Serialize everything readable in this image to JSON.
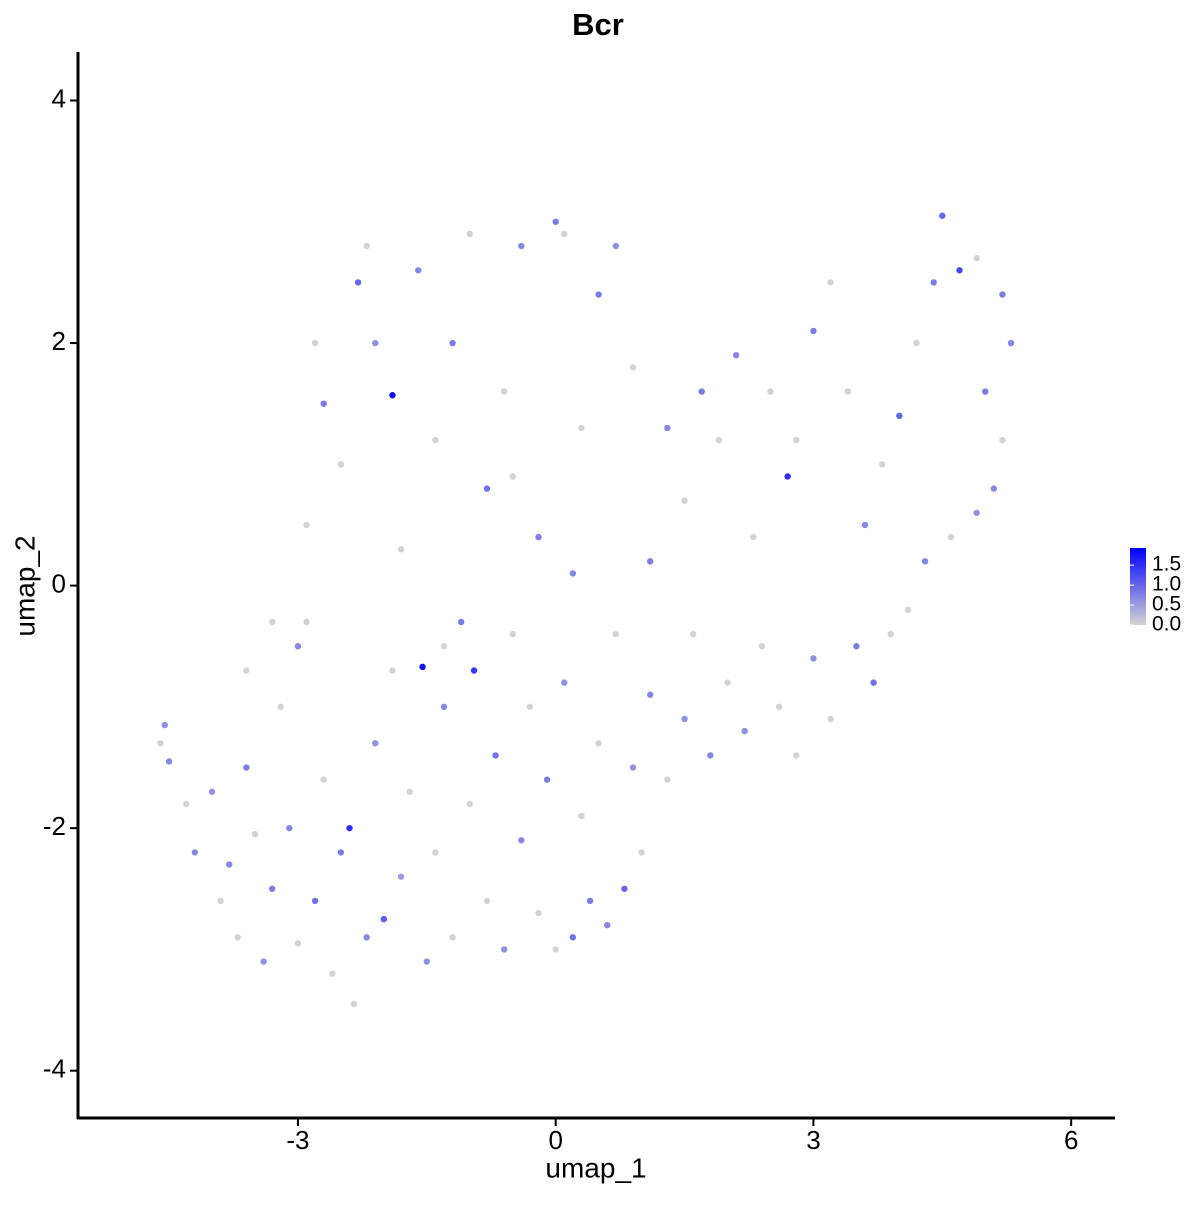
{
  "chart_data": {
    "type": "scatter",
    "title": "Bcr",
    "x_label": "umap_1",
    "y_label": "umap_2",
    "xlim": [
      -5.56,
      6.51
    ],
    "ylim": [
      -4.39,
      4.4
    ],
    "xticks": [
      -3,
      0,
      3,
      6
    ],
    "yticks": [
      -4,
      -2,
      0,
      2,
      4
    ],
    "grid": false,
    "color_low": "#d3d3d3",
    "color_high": "#0000ff",
    "clim": [
      0,
      1.93
    ],
    "cticks": [
      {
        "value": 0,
        "label": "0.0"
      },
      0.5,
      {
        "value": 1,
        "label": "1.0"
      },
      1.5
    ],
    "x": [
      -4.6,
      -4.55,
      -4.5,
      -4.3,
      -4.2,
      -4.0,
      -3.9,
      -3.8,
      -3.7,
      -3.6,
      -3.5,
      -3.4,
      -3.3,
      -3.2,
      -3.1,
      -3.0,
      -2.9,
      -2.8,
      -2.7,
      -2.6,
      -2.5,
      -2.4,
      -2.35,
      -2.2,
      -2.1,
      -2.0,
      -1.9,
      -1.8,
      -1.7,
      -1.55,
      -1.5,
      -1.4,
      -1.3,
      -1.2,
      -1.1,
      -1.0,
      -0.95,
      -0.8,
      -0.7,
      -0.6,
      -0.5,
      -0.4,
      -0.3,
      -0.2,
      -0.1,
      0,
      0.1,
      0.2,
      0.3,
      0.4,
      0.5,
      0.6,
      0.7,
      0.8,
      0.9,
      1.0,
      1.1,
      1.3,
      1.5,
      1.6,
      1.8,
      2.0,
      2.2,
      2.4,
      2.6,
      2.8,
      3.0,
      3.2,
      3.5,
      3.7,
      3.9,
      4.1,
      4.3,
      4.6,
      4.9,
      5.1,
      5.2,
      5.0,
      5.3,
      5.2,
      4.9,
      4.7,
      4.5,
      4.4,
      4.2,
      4.0,
      3.8,
      3.6,
      3.4,
      3.2,
      3.0,
      2.8,
      2.7,
      2.5,
      2.3,
      2.1,
      1.9,
      1.7,
      1.5,
      1.3,
      1.1,
      0.9,
      0.7,
      0.5,
      0.3,
      0.1,
      0,
      -0.2,
      -0.4,
      -0.6,
      -0.8,
      -1.0,
      -1.2,
      -1.4,
      -1.6,
      -1.8,
      -1.9,
      -2.1,
      -2.3,
      -2.5,
      -2.7,
      -2.9,
      -3.0,
      -3.3,
      -3.6,
      -2.8,
      -2.2,
      -0.5,
      0.2,
      -1.3
    ],
    "y": [
      -1.3,
      -1.15,
      -1.45,
      -1.8,
      -2.2,
      -1.7,
      -2.6,
      -2.3,
      -2.9,
      -1.5,
      -2.05,
      -3.1,
      -2.5,
      -1.0,
      -2.0,
      -2.95,
      -0.3,
      -2.6,
      -1.6,
      -3.2,
      -2.2,
      -2.0,
      -3.45,
      -2.9,
      -1.3,
      -2.75,
      -0.7,
      -2.4,
      -1.7,
      -0.67,
      -3.1,
      -2.2,
      -1.0,
      -2.9,
      -0.3,
      -1.8,
      -0.7,
      -2.6,
      -1.4,
      -3.0,
      -0.4,
      -2.1,
      -1.0,
      -2.7,
      -1.6,
      -3.0,
      -0.8,
      -2.9,
      -1.9,
      -2.6,
      -1.3,
      -2.8,
      -0.4,
      -2.5,
      -1.5,
      -2.2,
      -0.9,
      -1.6,
      -1.1,
      -0.4,
      -1.4,
      -0.8,
      -1.2,
      -0.5,
      -1.0,
      -1.4,
      -0.6,
      -1.1,
      -0.5,
      -0.8,
      -0.4,
      -0.2,
      0.2,
      0.4,
      0.6,
      0.8,
      1.2,
      1.6,
      2.0,
      2.4,
      2.7,
      2.6,
      3.05,
      2.5,
      2.0,
      1.4,
      1.0,
      0.5,
      1.6,
      2.5,
      2.1,
      1.2,
      0.9,
      1.6,
      0.4,
      1.9,
      1.2,
      1.6,
      0.7,
      1.3,
      0.2,
      1.8,
      2.8,
      2.4,
      1.3,
      2.9,
      3.0,
      0.4,
      2.8,
      1.6,
      0.8,
      2.9,
      2.0,
      1.2,
      2.6,
      0.3,
      1.57,
      2.0,
      2.5,
      1.0,
      1.5,
      0.5,
      -0.5,
      -0.3,
      -0.7,
      2.0,
      2.8,
      0.9,
      0.1,
      -0.5
    ],
    "values": [
      0,
      0.6,
      0.7,
      0,
      0.7,
      0.6,
      0,
      0.7,
      0,
      0.8,
      0,
      0.6,
      0.8,
      0,
      0.7,
      0,
      0,
      0.9,
      0,
      0,
      0.8,
      1.5,
      0,
      0.7,
      0.6,
      1.1,
      0,
      0.5,
      0,
      1.8,
      0.6,
      0,
      0.7,
      0,
      0.8,
      0,
      1.4,
      0,
      0.9,
      0.6,
      0,
      0.7,
      0,
      0,
      0.8,
      0,
      0.6,
      0.9,
      0,
      0.8,
      0,
      0.7,
      0,
      1.0,
      0.6,
      0,
      0.7,
      0,
      0.6,
      0,
      0.7,
      0,
      0.6,
      0,
      0,
      0,
      0.6,
      0,
      0.8,
      0.9,
      0,
      0,
      0.7,
      0,
      0.6,
      0.7,
      0,
      0.8,
      0.7,
      0.8,
      0,
      1.3,
      1.0,
      0.8,
      0,
      1.0,
      0,
      0.7,
      0,
      0,
      0.8,
      0,
      1.5,
      0,
      0,
      0.7,
      0,
      0.8,
      0,
      0.7,
      0.8,
      0,
      0.6,
      0.8,
      0,
      0,
      0.8,
      0.8,
      0.7,
      0,
      0.9,
      0,
      0.8,
      0,
      0.7,
      0,
      1.8,
      0.6,
      1.0,
      0,
      0.8,
      0,
      0.7,
      0,
      0,
      0,
      0,
      0,
      0.7,
      0
    ]
  }
}
